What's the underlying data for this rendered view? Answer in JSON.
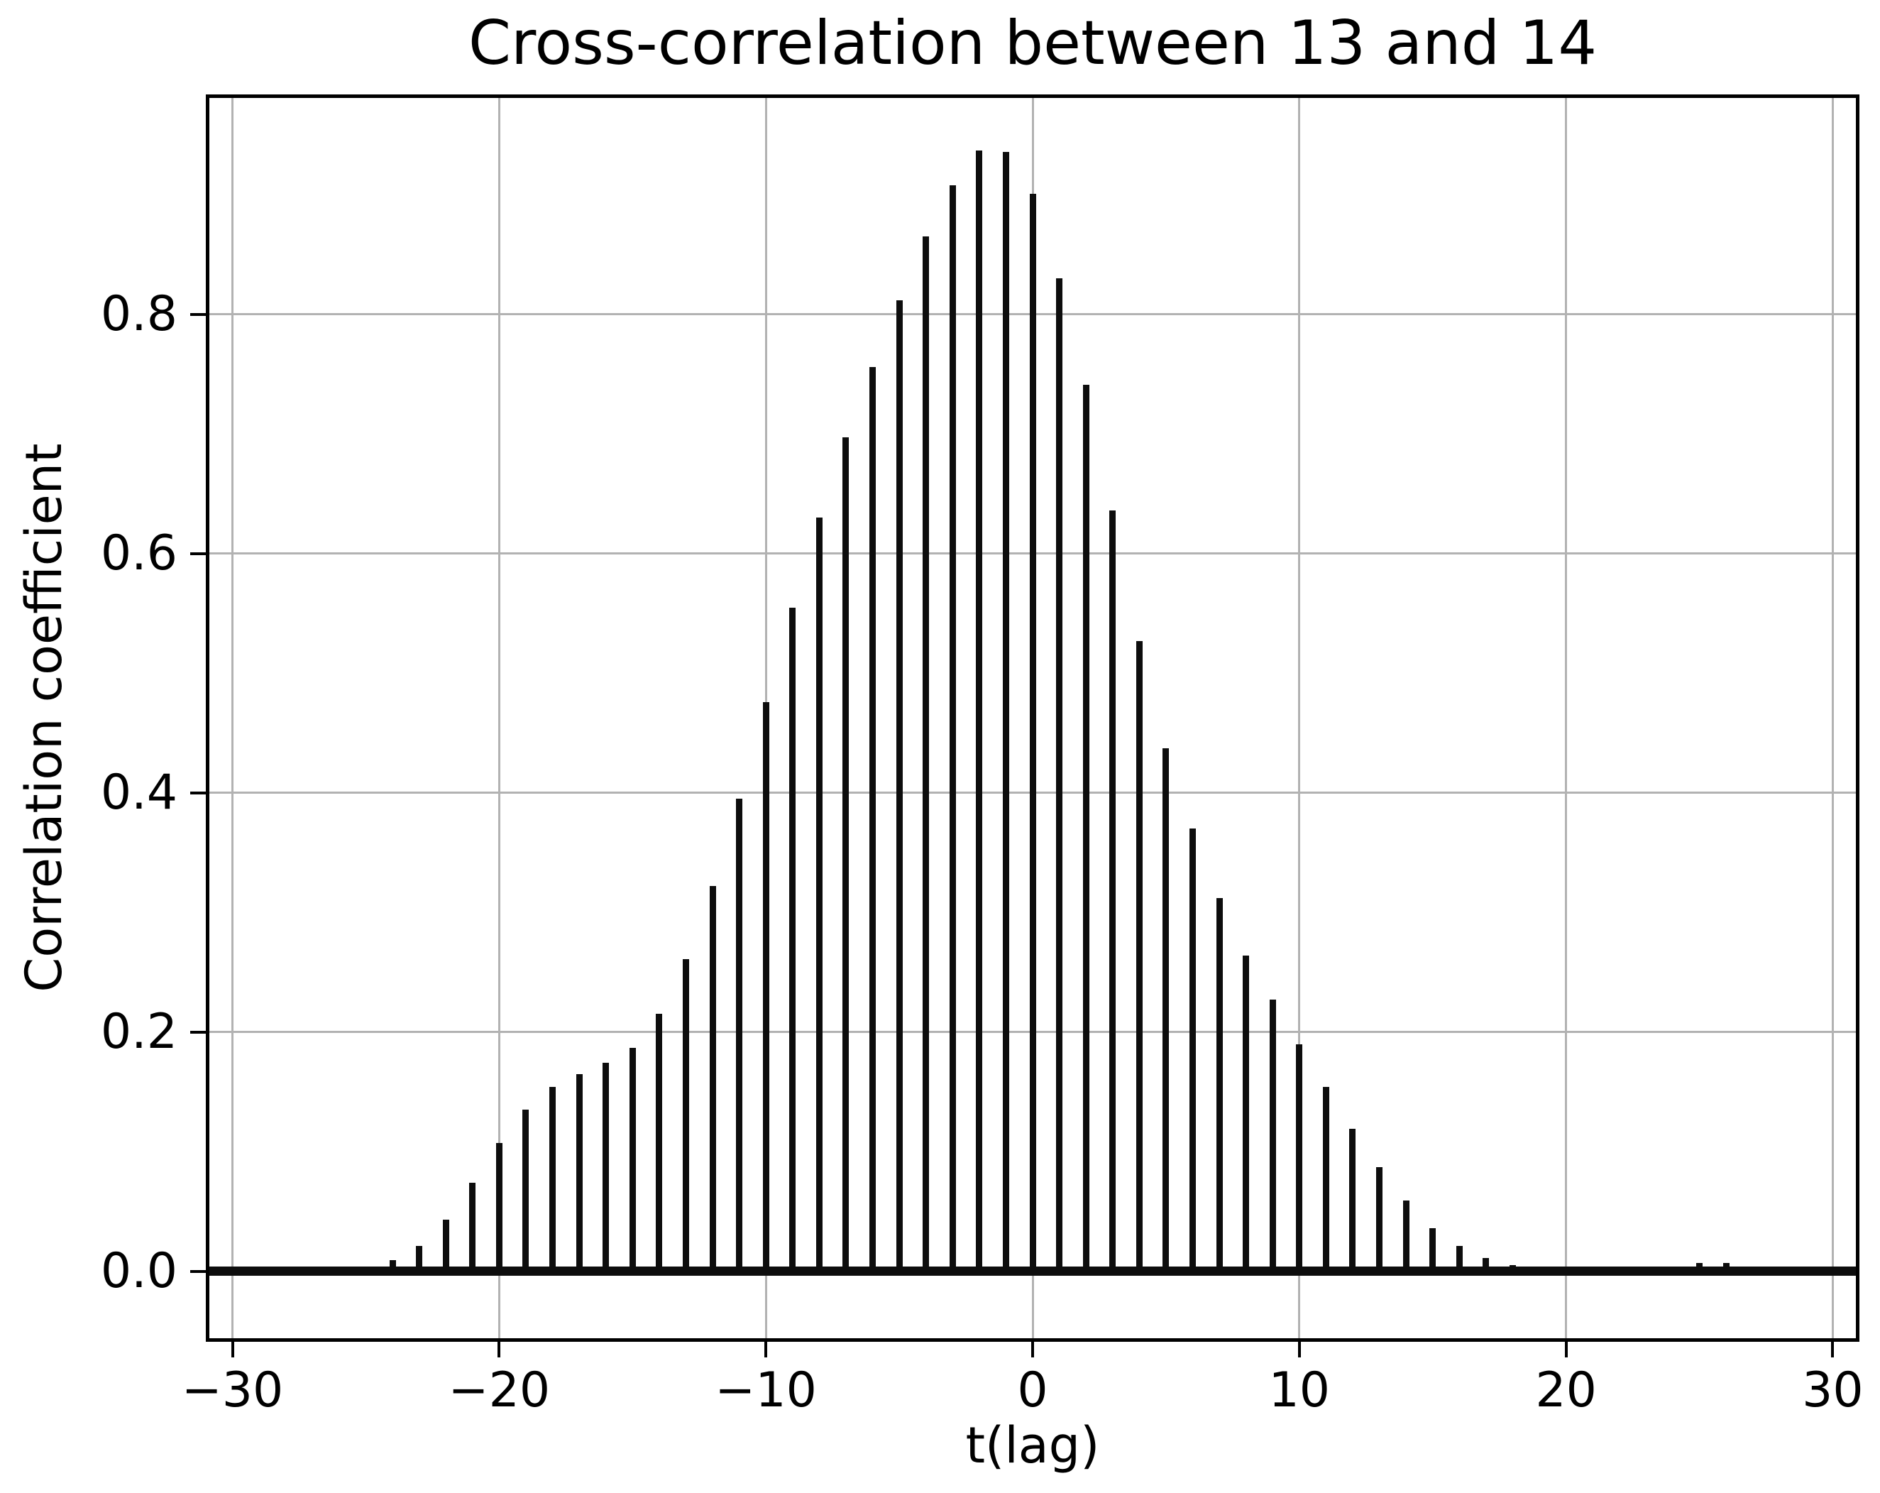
{
  "chart_data": {
    "type": "bar",
    "title": "Cross-correlation between 13 and 14",
    "xlabel": "t(lag)",
    "ylabel": "Correlation coefficient",
    "xlim": [
      -31,
      31
    ],
    "ylim": [
      -0.059,
      0.984
    ],
    "grid": true,
    "legend": "none",
    "bar_color": "#0d0d0d",
    "grid_color": "#b2b2b2",
    "background_color": "#ffffff",
    "baseline_value": 0,
    "x_ticks": [
      -30,
      -20,
      -10,
      0,
      10,
      20,
      30
    ],
    "x_tick_labels": [
      "−30",
      "−20",
      "−10",
      "0",
      "10",
      "20",
      "30"
    ],
    "y_ticks": [
      0.0,
      0.2,
      0.4,
      0.6,
      0.8
    ],
    "y_tick_labels": [
      "0.0",
      "0.2",
      "0.4",
      "0.6",
      "0.8"
    ],
    "x": [
      -30,
      -29,
      -28,
      -27,
      -26,
      -25,
      -24,
      -23,
      -22,
      -21,
      -20,
      -19,
      -18,
      -17,
      -16,
      -15,
      -14,
      -13,
      -12,
      -11,
      -10,
      -9,
      -8,
      -7,
      -6,
      -5,
      -4,
      -3,
      -2,
      -1,
      0,
      1,
      2,
      3,
      4,
      5,
      6,
      7,
      8,
      9,
      10,
      11,
      12,
      13,
      14,
      15,
      16,
      17,
      18,
      19,
      20,
      21,
      22,
      23,
      24,
      25,
      26,
      27,
      28,
      29,
      30
    ],
    "values": [
      0.0,
      0.0,
      0.001,
      0.001,
      0.001,
      0.002,
      0.009,
      0.021,
      0.043,
      0.074,
      0.107,
      0.135,
      0.154,
      0.165,
      0.174,
      0.187,
      0.215,
      0.261,
      0.322,
      0.395,
      0.476,
      0.555,
      0.63,
      0.697,
      0.756,
      0.812,
      0.865,
      0.908,
      0.937,
      0.936,
      0.901,
      0.83,
      0.741,
      0.636,
      0.527,
      0.437,
      0.37,
      0.312,
      0.264,
      0.227,
      0.19,
      0.154,
      0.119,
      0.087,
      0.059,
      0.036,
      0.021,
      0.011,
      0.005,
      0.002,
      0.001,
      0.001,
      0.001,
      0.001,
      0.002,
      0.007,
      0.007,
      0.001,
      0.0,
      0.0,
      0.0
    ]
  }
}
